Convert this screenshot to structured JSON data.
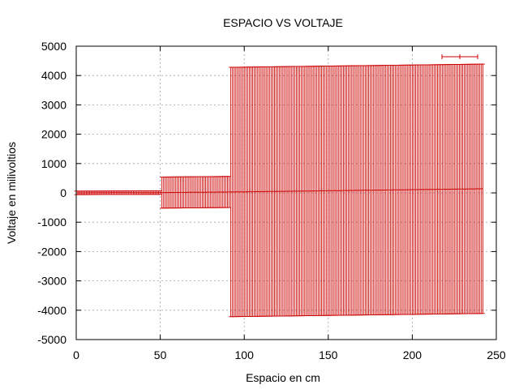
{
  "chart_data": {
    "type": "line",
    "title": "ESPACIO VS VOLTAJE",
    "xlabel": "Espacio en cm",
    "ylabel": "Voltaje en milivoltios",
    "xlim": [
      0,
      250
    ],
    "ylim": [
      -5000,
      5000
    ],
    "xticks": [
      0,
      50,
      100,
      150,
      200,
      250
    ],
    "yticks": [
      -5000,
      -4000,
      -3000,
      -2000,
      -1000,
      0,
      1000,
      2000,
      3000,
      4000,
      5000
    ],
    "grid": true,
    "legend_position": "top-right",
    "series_color": "#cc0000",
    "series": [
      {
        "style": "line with y error bars",
        "segments": [
          {
            "x_start": 0,
            "x_end": 50,
            "step": 1,
            "y_start": 0,
            "y_end": 10,
            "error": 60
          },
          {
            "x_start": 51,
            "x_end": 91,
            "step": 1,
            "y_start": 10,
            "y_end": 30,
            "error": 530
          },
          {
            "x_start": 92,
            "x_end": 242,
            "step": 1,
            "y_start": 30,
            "y_end": 140,
            "error": 4250
          }
        ]
      }
    ]
  }
}
